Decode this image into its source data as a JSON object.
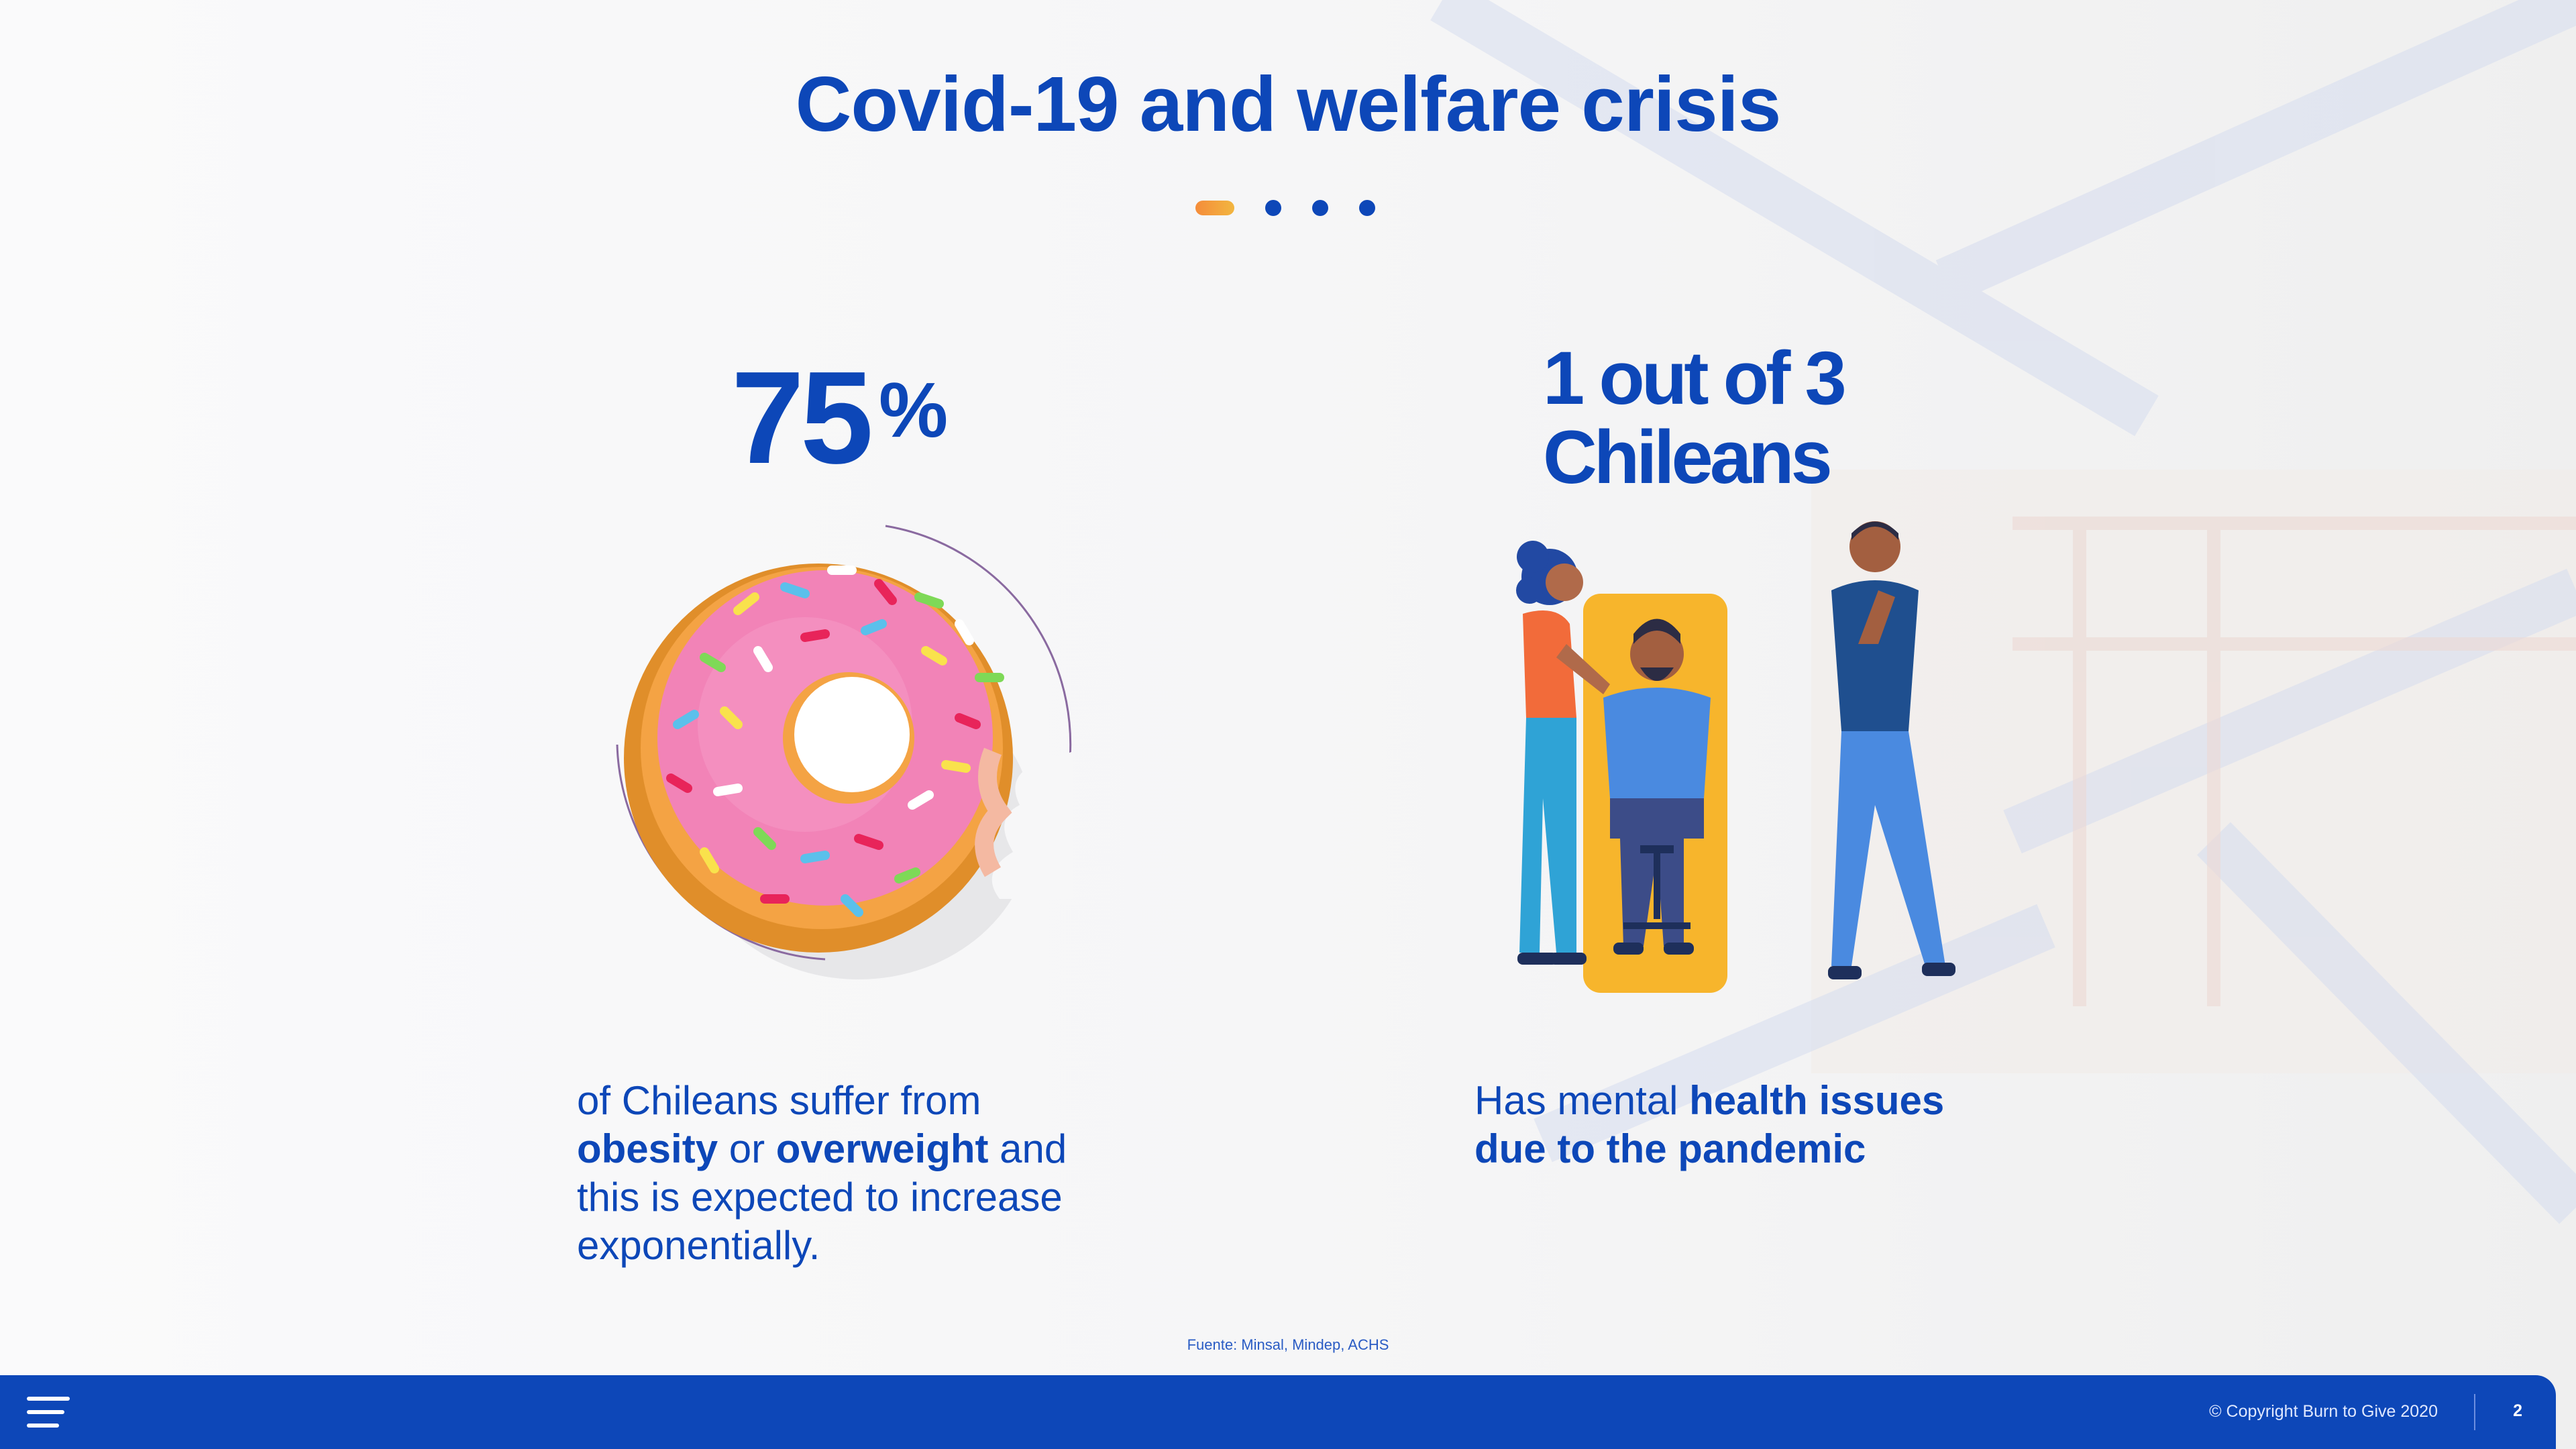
{
  "slide": {
    "title": "Covid-19 and welfare crisis",
    "pager": {
      "total": 4,
      "current": 1
    },
    "left": {
      "stat_number": "75",
      "stat_symbol": "%",
      "illustration": "donut-icon",
      "desc_1": "of Chileans suffer from",
      "desc_bold_1": "obesity",
      "desc_2": " or ",
      "desc_bold_2": "overweight",
      "desc_3": " and",
      "desc_4": "this is expected to increase",
      "desc_5": "exponentially."
    },
    "right": {
      "stat_line_1": "1 out of 3",
      "stat_line_2": "Chileans",
      "illustration": "people-mental-health-icon",
      "desc_1": "Has mental ",
      "desc_bold_1": "health issues",
      "desc_bold_2": "due to the pandemic"
    },
    "source": "Fuente: Minsal, Mindep, ACHS"
  },
  "footer": {
    "menu_icon": "hamburger-menu-icon",
    "copyright": "© Copyright Burn to Give 2020",
    "page_number": "2"
  },
  "colors": {
    "primary": "#0d47b8",
    "accent_orange": "#f58c3a",
    "accent_yellow": "#f2b640",
    "donut_pink": "#f283b7",
    "background": "#f7f7f8"
  }
}
